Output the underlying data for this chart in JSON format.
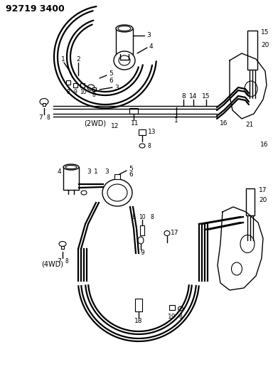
{
  "title_code": "92719 3400",
  "background_color": "#ffffff",
  "line_color": "#000000",
  "label_2wd": "(2WD)",
  "label_4wd": "(4WD)",
  "fig_width": 3.84,
  "fig_height": 5.33,
  "dpi": 100
}
